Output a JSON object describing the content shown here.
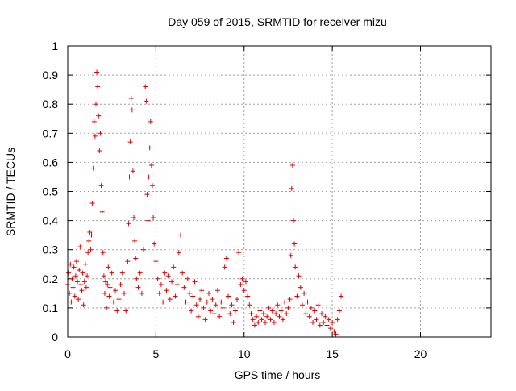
{
  "chart_data": {
    "type": "scatter",
    "title": "Day 059 of 2015, SRMTID for receiver mizu",
    "xlabel": "GPS time / hours",
    "ylabel": "SRMTID / TECUs",
    "xlim": [
      0,
      24
    ],
    "ylim": [
      0,
      1
    ],
    "xticks": [
      "0",
      "5",
      "10",
      "15",
      "20"
    ],
    "yticks": [
      "0",
      "0.1",
      "0.2",
      "0.3",
      "0.4",
      "0.5",
      "0.6",
      "0.7",
      "0.8",
      "0.9",
      "1"
    ],
    "marker": "+",
    "color": "#e00000",
    "grid": true,
    "series": [
      {
        "name": "SRMTID",
        "points": [
          [
            0.0,
            0.18
          ],
          [
            0.05,
            0.22
          ],
          [
            0.1,
            0.15
          ],
          [
            0.15,
            0.25
          ],
          [
            0.2,
            0.12
          ],
          [
            0.25,
            0.2
          ],
          [
            0.3,
            0.17
          ],
          [
            0.35,
            0.24
          ],
          [
            0.4,
            0.14
          ],
          [
            0.45,
            0.21
          ],
          [
            0.5,
            0.26
          ],
          [
            0.55,
            0.19
          ],
          [
            0.6,
            0.13
          ],
          [
            0.65,
            0.23
          ],
          [
            0.7,
            0.31
          ],
          [
            0.75,
            0.18
          ],
          [
            0.8,
            0.16
          ],
          [
            0.85,
            0.22
          ],
          [
            0.9,
            0.11
          ],
          [
            0.95,
            0.19
          ],
          [
            1.0,
            0.25
          ],
          [
            1.05,
            0.17
          ],
          [
            1.1,
            0.21
          ],
          [
            1.15,
            0.29
          ],
          [
            1.2,
            0.33
          ],
          [
            1.25,
            0.36
          ],
          [
            1.3,
            0.3
          ],
          [
            1.35,
            0.35
          ],
          [
            1.4,
            0.46
          ],
          [
            1.45,
            0.58
          ],
          [
            1.5,
            0.74
          ],
          [
            1.55,
            0.69
          ],
          [
            1.6,
            0.8
          ],
          [
            1.65,
            0.91
          ],
          [
            1.7,
            0.86
          ],
          [
            1.75,
            0.76
          ],
          [
            1.8,
            0.64
          ],
          [
            1.85,
            0.7
          ],
          [
            1.9,
            0.52
          ],
          [
            1.95,
            0.43
          ],
          [
            2.0,
            0.29
          ],
          [
            2.05,
            0.21
          ],
          [
            2.1,
            0.15
          ],
          [
            2.15,
            0.19
          ],
          [
            2.2,
            0.1
          ],
          [
            2.25,
            0.18
          ],
          [
            2.3,
            0.24
          ],
          [
            2.35,
            0.14
          ],
          [
            2.4,
            0.17
          ],
          [
            2.5,
            0.22
          ],
          [
            2.6,
            0.12
          ],
          [
            2.7,
            0.16
          ],
          [
            2.8,
            0.09
          ],
          [
            2.9,
            0.13
          ],
          [
            3.0,
            0.18
          ],
          [
            3.1,
            0.22
          ],
          [
            3.2,
            0.15
          ],
          [
            3.3,
            0.09
          ],
          [
            3.4,
            0.26
          ],
          [
            3.45,
            0.39
          ],
          [
            3.5,
            0.55
          ],
          [
            3.55,
            0.67
          ],
          [
            3.6,
            0.82
          ],
          [
            3.65,
            0.78
          ],
          [
            3.7,
            0.57
          ],
          [
            3.75,
            0.41
          ],
          [
            3.8,
            0.33
          ],
          [
            3.85,
            0.27
          ],
          [
            3.9,
            0.2
          ],
          [
            4.0,
            0.17
          ],
          [
            4.1,
            0.22
          ],
          [
            4.2,
            0.15
          ],
          [
            4.3,
            0.3
          ],
          [
            4.4,
            0.86
          ],
          [
            4.45,
            0.81
          ],
          [
            4.5,
            0.49
          ],
          [
            4.55,
            0.4
          ],
          [
            4.6,
            0.55
          ],
          [
            4.65,
            0.65
          ],
          [
            4.7,
            0.74
          ],
          [
            4.75,
            0.59
          ],
          [
            4.8,
            0.52
          ],
          [
            4.85,
            0.41
          ],
          [
            4.9,
            0.32
          ],
          [
            5.0,
            0.26
          ],
          [
            5.1,
            0.2
          ],
          [
            5.2,
            0.15
          ],
          [
            5.3,
            0.18
          ],
          [
            5.4,
            0.12
          ],
          [
            5.5,
            0.22
          ],
          [
            5.6,
            0.16
          ],
          [
            5.7,
            0.21
          ],
          [
            5.8,
            0.13
          ],
          [
            5.9,
            0.19
          ],
          [
            6.0,
            0.24
          ],
          [
            6.1,
            0.14
          ],
          [
            6.2,
            0.18
          ],
          [
            6.3,
            0.29
          ],
          [
            6.4,
            0.35
          ],
          [
            6.5,
            0.22
          ],
          [
            6.6,
            0.17
          ],
          [
            6.7,
            0.12
          ],
          [
            6.8,
            0.2
          ],
          [
            6.9,
            0.15
          ],
          [
            7.0,
            0.09
          ],
          [
            7.1,
            0.14
          ],
          [
            7.2,
            0.19
          ],
          [
            7.3,
            0.11
          ],
          [
            7.4,
            0.07
          ],
          [
            7.5,
            0.13
          ],
          [
            7.6,
            0.16
          ],
          [
            7.7,
            0.1
          ],
          [
            7.8,
            0.06
          ],
          [
            7.9,
            0.12
          ],
          [
            8.0,
            0.15
          ],
          [
            8.1,
            0.09
          ],
          [
            8.2,
            0.13
          ],
          [
            8.3,
            0.08
          ],
          [
            8.4,
            0.11
          ],
          [
            8.5,
            0.16
          ],
          [
            8.6,
            0.07
          ],
          [
            8.7,
            0.12
          ],
          [
            8.8,
            0.1
          ],
          [
            8.9,
            0.24
          ],
          [
            9.0,
            0.27
          ],
          [
            9.1,
            0.14
          ],
          [
            9.2,
            0.08
          ],
          [
            9.3,
            0.11
          ],
          [
            9.4,
            0.05
          ],
          [
            9.5,
            0.09
          ],
          [
            9.6,
            0.13
          ],
          [
            9.7,
            0.29
          ],
          [
            9.8,
            0.18
          ],
          [
            9.9,
            0.2
          ],
          [
            10.0,
            0.16
          ],
          [
            10.1,
            0.19
          ],
          [
            10.2,
            0.14
          ],
          [
            10.3,
            0.11
          ],
          [
            10.4,
            0.08
          ],
          [
            10.5,
            0.06
          ],
          [
            10.6,
            0.04
          ],
          [
            10.7,
            0.07
          ],
          [
            10.8,
            0.05
          ],
          [
            10.9,
            0.09
          ],
          [
            11.0,
            0.06
          ],
          [
            11.1,
            0.08
          ],
          [
            11.2,
            0.05
          ],
          [
            11.3,
            0.07
          ],
          [
            11.4,
            0.1
          ],
          [
            11.5,
            0.06
          ],
          [
            11.6,
            0.09
          ],
          [
            11.7,
            0.05
          ],
          [
            11.8,
            0.08
          ],
          [
            11.9,
            0.11
          ],
          [
            12.0,
            0.07
          ],
          [
            12.1,
            0.09
          ],
          [
            12.2,
            0.06
          ],
          [
            12.3,
            0.12
          ],
          [
            12.4,
            0.08
          ],
          [
            12.5,
            0.1
          ],
          [
            12.6,
            0.13
          ],
          [
            12.65,
            0.28
          ],
          [
            12.7,
            0.51
          ],
          [
            12.75,
            0.59
          ],
          [
            12.8,
            0.4
          ],
          [
            12.85,
            0.32
          ],
          [
            12.9,
            0.24
          ],
          [
            13.0,
            0.14
          ],
          [
            13.1,
            0.21
          ],
          [
            13.2,
            0.17
          ],
          [
            13.3,
            0.11
          ],
          [
            13.4,
            0.15
          ],
          [
            13.5,
            0.08
          ],
          [
            13.6,
            0.12
          ],
          [
            13.7,
            0.07
          ],
          [
            13.8,
            0.1
          ],
          [
            13.9,
            0.05
          ],
          [
            14.0,
            0.09
          ],
          [
            14.1,
            0.06
          ],
          [
            14.2,
            0.11
          ],
          [
            14.3,
            0.04
          ],
          [
            14.4,
            0.08
          ],
          [
            14.5,
            0.05
          ],
          [
            14.6,
            0.07
          ],
          [
            14.7,
            0.04
          ],
          [
            14.8,
            0.06
          ],
          [
            14.9,
            0.03
          ],
          [
            15.0,
            0.05
          ],
          [
            15.1,
            0.02
          ],
          [
            15.2,
            0.01
          ],
          [
            15.3,
            0.06
          ],
          [
            15.4,
            0.09
          ],
          [
            15.5,
            0.14
          ]
        ]
      }
    ]
  }
}
